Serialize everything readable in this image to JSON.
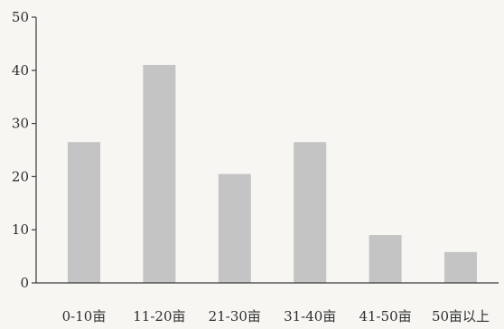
{
  "chart_data": {
    "type": "bar",
    "title": "",
    "xlabel": "",
    "ylabel": "",
    "categories": [
      "0-10亩",
      "11-20亩",
      "21-30亩",
      "31-40亩",
      "41-50亩",
      "50亩以上"
    ],
    "values": [
      26.5,
      41,
      20.5,
      26.5,
      9,
      5.8
    ],
    "ylim": [
      0,
      50
    ],
    "yticks": [
      0,
      10,
      20,
      30,
      40,
      50
    ],
    "grid": false,
    "bar_color": "#c4c4c4",
    "axis_color": "#3a3a3a"
  }
}
